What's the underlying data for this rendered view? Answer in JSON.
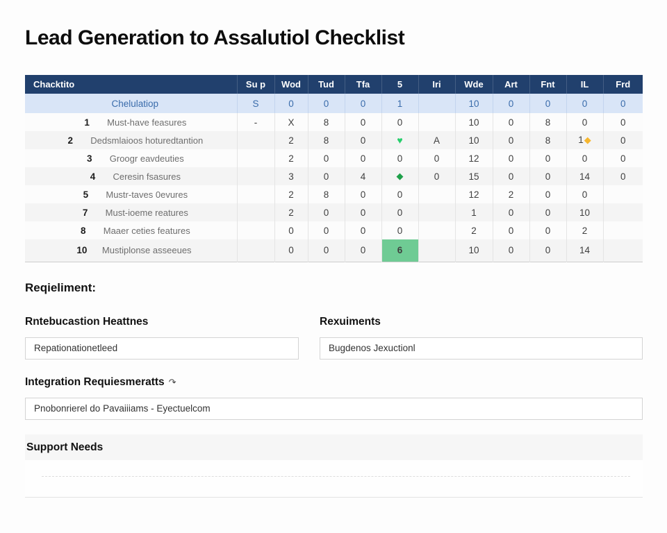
{
  "page": {
    "title": "Lead Generation to Assalutiol Checklist"
  },
  "colors": {
    "header_bg": "#21406d",
    "summary_row_bg": "#d9e5f7",
    "summary_text": "#3a6cab",
    "green_accent": "#27ce6c",
    "dark_green_accent": "#1fa04a",
    "yellow_accent": "#f6b62f",
    "highlight_cell_bg": "#6fcb94"
  },
  "icons": {
    "green-heart": "♥",
    "green-diamond": "◆",
    "yellow-diamond": "◆",
    "curved-arrow": "↷"
  },
  "table": {
    "columns": [
      "Chacktito",
      "Su p",
      "Wod",
      "Tud",
      "Tfa",
      "5",
      "Iri",
      "Wde",
      "Art",
      "Fnt",
      "IL",
      "Frd"
    ],
    "summary_row": {
      "label": "Chelulatiop",
      "cells": [
        {
          "text": "S"
        },
        {
          "text": "0"
        },
        {
          "text": "0"
        },
        {
          "text": "0"
        },
        {
          "text": "1"
        },
        {
          "text": ""
        },
        {
          "text": "10"
        },
        {
          "text": "0"
        },
        {
          "text": "0"
        },
        {
          "text": "0"
        },
        {
          "text": "0"
        }
      ]
    },
    "rows": [
      {
        "num": "1",
        "label": "Must-have feasures",
        "cells": [
          {
            "text": "-"
          },
          {
            "text": "X"
          },
          {
            "text": "8"
          },
          {
            "text": "0"
          },
          {
            "text": "0"
          },
          {
            "text": ""
          },
          {
            "text": "10"
          },
          {
            "text": "0"
          },
          {
            "text": "8"
          },
          {
            "text": "0"
          },
          {
            "text": "0"
          }
        ]
      },
      {
        "num": "2",
        "label": "Dedsmlaioos hoturedtantion",
        "cells": [
          {
            "text": ""
          },
          {
            "text": "2"
          },
          {
            "text": "8"
          },
          {
            "text": "0"
          },
          {
            "icon": "green-heart"
          },
          {
            "text": "A"
          },
          {
            "text": "10"
          },
          {
            "text": "0"
          },
          {
            "text": "8"
          },
          {
            "text": "1",
            "icon": "yellow-diamond"
          },
          {
            "text": "0"
          }
        ]
      },
      {
        "num": "3",
        "label": "Groogr eavdeuties",
        "cells": [
          {
            "text": ""
          },
          {
            "text": "2"
          },
          {
            "text": "0"
          },
          {
            "text": "0"
          },
          {
            "text": "0"
          },
          {
            "text": "0"
          },
          {
            "text": "12"
          },
          {
            "text": "0"
          },
          {
            "text": "0"
          },
          {
            "text": "0"
          },
          {
            "text": "0"
          }
        ]
      },
      {
        "num": "4",
        "label": "Ceresin fsasures",
        "cells": [
          {
            "text": ""
          },
          {
            "text": "3"
          },
          {
            "text": "0"
          },
          {
            "text": "4"
          },
          {
            "icon": "green-diamond"
          },
          {
            "text": "0"
          },
          {
            "text": "15"
          },
          {
            "text": "0"
          },
          {
            "text": "0"
          },
          {
            "text": "14"
          },
          {
            "text": "0"
          }
        ]
      },
      {
        "num": "5",
        "label": "Mustr-taves 0evures",
        "cells": [
          {
            "text": ""
          },
          {
            "text": "2"
          },
          {
            "text": "8"
          },
          {
            "text": "0"
          },
          {
            "text": "0"
          },
          {
            "text": ""
          },
          {
            "text": "12"
          },
          {
            "text": "2"
          },
          {
            "text": "0"
          },
          {
            "text": "0"
          },
          {
            "text": ""
          }
        ]
      },
      {
        "num": "7",
        "label": "Must-ioeme reatures",
        "cells": [
          {
            "text": ""
          },
          {
            "text": "2"
          },
          {
            "text": "0"
          },
          {
            "text": "0"
          },
          {
            "text": "0"
          },
          {
            "text": ""
          },
          {
            "text": "1"
          },
          {
            "text": "0"
          },
          {
            "text": "0"
          },
          {
            "text": "10"
          },
          {
            "text": ""
          }
        ]
      },
      {
        "num": "8",
        "label": "Maaer ceties features",
        "cells": [
          {
            "text": ""
          },
          {
            "text": "0"
          },
          {
            "text": "0"
          },
          {
            "text": "0"
          },
          {
            "text": "0",
            "style": "green-text"
          },
          {
            "text": ""
          },
          {
            "text": "2"
          },
          {
            "text": "0"
          },
          {
            "text": "0"
          },
          {
            "text": "2"
          },
          {
            "text": ""
          }
        ]
      },
      {
        "num": "10",
        "label": "Mustiplonse asseeues",
        "cells": [
          {
            "text": ""
          },
          {
            "text": "0"
          },
          {
            "text": "0"
          },
          {
            "text": "0"
          },
          {
            "text": "6",
            "style": "green-bg"
          },
          {
            "text": ""
          },
          {
            "text": "10"
          },
          {
            "text": "0"
          },
          {
            "text": "0"
          },
          {
            "text": "14"
          },
          {
            "text": ""
          }
        ]
      }
    ]
  },
  "requirements": {
    "heading": "Reqieliment:",
    "fields": [
      {
        "label": "Rntebucastion Heattnes",
        "value": "Repationationetleed"
      },
      {
        "label": "Rexuiments",
        "value": "Bugdenos Jexuctionl"
      }
    ],
    "integration": {
      "label": "Integration Requiesmeratts",
      "value": "Pnobonrierel do Pavaiiiams - Eyectuelcom"
    },
    "support": {
      "label": "Support Needs"
    }
  }
}
